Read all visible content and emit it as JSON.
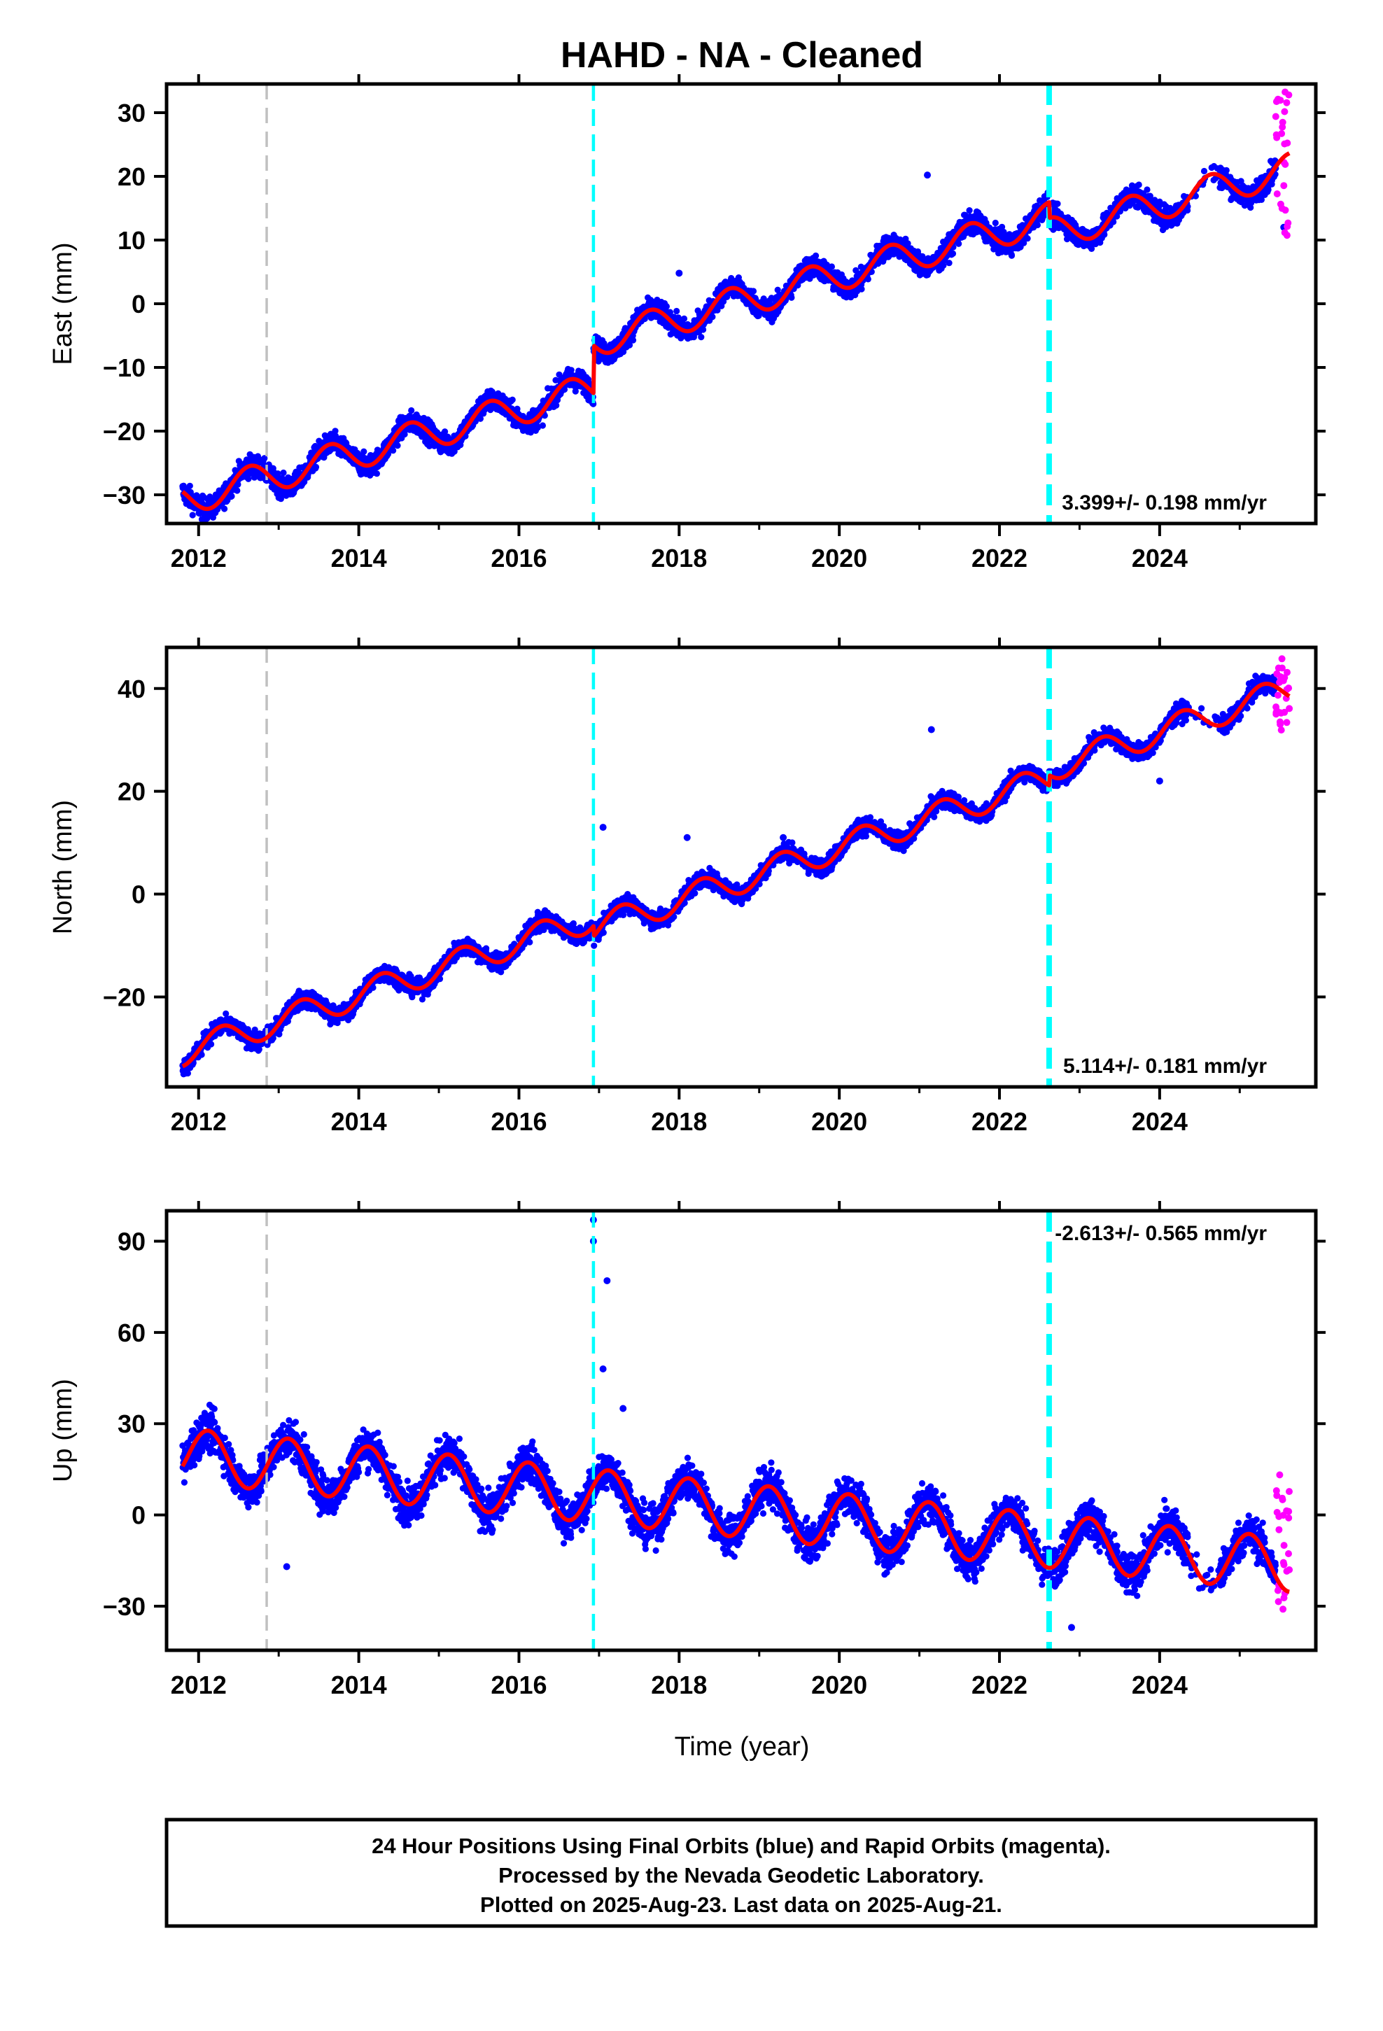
{
  "figure": {
    "title": "HAHD  - NA - Cleaned",
    "xlabel": "Time (year)",
    "footer": [
      "24 Hour Positions Using Final Orbits (blue) and Rapid Orbits (magenta).",
      "Processed by the Nevada Geodetic Laboratory.",
      "Plotted on 2025-Aug-23. Last data on 2025-Aug-21."
    ],
    "colors": {
      "final_orbits": "#0000ff",
      "rapid_orbits": "#ff00ff",
      "model": "#ff0000",
      "equipment_change": "#00ffff",
      "other_event": "#c0c0c0"
    }
  },
  "chart_data": [
    {
      "type": "scatter",
      "ylabel": "East (mm)",
      "xlim": [
        2011.6,
        2025.95
      ],
      "ylim": [
        -34.5,
        34.5
      ],
      "xticks": [
        2012,
        2014,
        2016,
        2018,
        2020,
        2022,
        2024
      ],
      "yticks": [
        -30,
        -20,
        -10,
        0,
        10,
        20,
        30
      ],
      "rate_label": "3.399+/- 0.198 mm/yr",
      "rate_label_position": "bottom-right",
      "events": [
        {
          "x": 2012.85,
          "style": "gray-dashed"
        },
        {
          "x": 2016.93,
          "style": "cyan-dashed"
        },
        {
          "x": 2022.62,
          "style": "cyan-dashed-thick"
        }
      ],
      "model_curve": {
        "start": 2011.8,
        "end": 2025.62,
        "start_value": -29.5,
        "rate": 3.399,
        "amp_sin": -1.9,
        "amp_cos": -1.6,
        "offsets": [
          {
            "x": 2016.93,
            "value": 7.5
          },
          {
            "x": 2022.62,
            "value": -2.5
          }
        ]
      },
      "final_orbit_series": {
        "start": 2011.8,
        "end": 2025.45,
        "scatter": 1.2
      },
      "rapid_orbit_series": {
        "start": 2025.45,
        "end": 2025.62,
        "min": 10.5,
        "max": 33.5
      },
      "outliers": [
        {
          "x": 2021.1,
          "y": 20.2
        },
        {
          "x": 2018.0,
          "y": 4.8
        },
        {
          "x": 2025.55,
          "y": 12.0
        }
      ]
    },
    {
      "type": "scatter",
      "ylabel": "North (mm)",
      "xlim": [
        2011.6,
        2025.95
      ],
      "ylim": [
        -37.5,
        48
      ],
      "xticks": [
        2012,
        2014,
        2016,
        2018,
        2020,
        2022,
        2024
      ],
      "yticks": [
        -20,
        0,
        20,
        40
      ],
      "rate_label": "5.114+/- 0.181 mm/yr",
      "rate_label_position": "bottom-right",
      "events": [
        {
          "x": 2012.85,
          "style": "gray-dashed"
        },
        {
          "x": 2016.93,
          "style": "cyan-dashed"
        },
        {
          "x": 2022.62,
          "style": "cyan-dashed-thick"
        }
      ],
      "model_curve": {
        "start": 2011.8,
        "end": 2025.62,
        "start_value": -33.5,
        "rate": 5.114,
        "amp_sin": 2.6,
        "amp_cos": -0.6,
        "offsets": [
          {
            "x": 2016.93,
            "value": -2.0
          },
          {
            "x": 2022.62,
            "value": 2.0
          }
        ]
      },
      "final_orbit_series": {
        "start": 2011.8,
        "end": 2025.45,
        "scatter": 1.2
      },
      "rapid_orbit_series": {
        "start": 2025.45,
        "end": 2025.62,
        "min": 31.5,
        "max": 46.0
      },
      "outliers": [
        {
          "x": 2017.05,
          "y": 13.0
        },
        {
          "x": 2021.15,
          "y": 32.0
        },
        {
          "x": 2024.0,
          "y": 22.0
        },
        {
          "x": 2019.3,
          "y": 11.0
        },
        {
          "x": 2018.1,
          "y": 11.0
        }
      ]
    },
    {
      "type": "scatter",
      "ylabel": "Up (mm)",
      "xlim": [
        2011.6,
        2025.95
      ],
      "ylim": [
        -44.5,
        100
      ],
      "xticks": [
        2012,
        2014,
        2016,
        2018,
        2020,
        2022,
        2024
      ],
      "yticks": [
        -30,
        0,
        30,
        60,
        90
      ],
      "rate_label": "-2.613+/- 0.565 mm/yr",
      "rate_label_position": "top-right",
      "events": [
        {
          "x": 2012.85,
          "style": "gray-dashed"
        },
        {
          "x": 2016.93,
          "style": "cyan-dashed"
        },
        {
          "x": 2022.62,
          "style": "cyan-dashed-thick"
        }
      ],
      "model_curve": {
        "start": 2011.8,
        "end": 2025.62,
        "start_value": 16.0,
        "rate": -2.613,
        "amp_sin": 6.0,
        "amp_cos": 6.5,
        "offsets": []
      },
      "final_orbit_series": {
        "start": 2011.8,
        "end": 2025.45,
        "scatter": 4.5
      },
      "rapid_orbit_series": {
        "start": 2025.45,
        "end": 2025.62,
        "min": -33.0,
        "max": 14.0
      },
      "outliers": [
        {
          "x": 2016.93,
          "y": 97.0
        },
        {
          "x": 2016.93,
          "y": 90.0
        },
        {
          "x": 2017.1,
          "y": 77.0
        },
        {
          "x": 2017.05,
          "y": 48.0
        },
        {
          "x": 2013.1,
          "y": -17.0
        },
        {
          "x": 2022.9,
          "y": -37.0
        },
        {
          "x": 2017.3,
          "y": 35.0
        }
      ]
    }
  ]
}
